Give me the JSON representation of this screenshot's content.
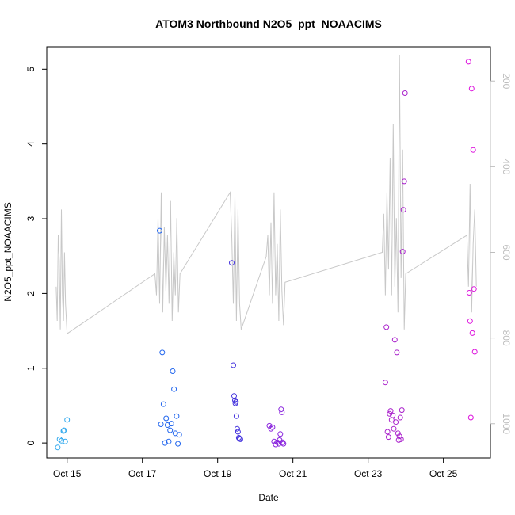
{
  "chart_data": {
    "type": "scatter",
    "title": "ATOM3 Northbound N2O5_ppt_NOAACIMS",
    "xlabel": "Date",
    "ylabel": "N2O5_ppt_NOAACIMS",
    "xlim": [
      "2017-10-14T11:00",
      "2017-10-26T06:00"
    ],
    "ylim": [
      -0.2,
      5.3
    ],
    "x_ticks": [
      {
        "date": "2017-10-15",
        "label": "Oct 15"
      },
      {
        "date": "2017-10-17",
        "label": "Oct 17"
      },
      {
        "date": "2017-10-19",
        "label": "Oct 19"
      },
      {
        "date": "2017-10-21",
        "label": "Oct 21"
      },
      {
        "date": "2017-10-23",
        "label": "Oct 23"
      },
      {
        "date": "2017-10-25",
        "label": "Oct 25"
      }
    ],
    "y_ticks": [
      0,
      1,
      2,
      3,
      4,
      5
    ],
    "right_axis": {
      "scale": "reversed",
      "range": [
        1080,
        120
      ],
      "ticks": [
        200,
        400,
        600,
        800,
        1000
      ],
      "color": "#bdbdbd"
    },
    "grid": false,
    "legend": "none",
    "marker": "open-circle",
    "line_color": "#c8c8c8",
    "flight_colors": [
      "#33aaee",
      "#2266ee",
      "#4433dd",
      "#8822dd",
      "#aa22cc",
      "#dd11dd"
    ],
    "series": [
      {
        "color": "#33aaee",
        "x": [
          "2017-10-14T18:00",
          "2017-10-14T19:12",
          "2017-10-14T20:24",
          "2017-10-14T21:36",
          "2017-10-14T22:00",
          "2017-10-14T22:48",
          "2017-10-15T00:00"
        ],
        "y": [
          -0.06,
          0.05,
          0.03,
          0.16,
          0.17,
          0.02,
          0.31
        ]
      },
      {
        "color": "#2266ee",
        "x": [
          "2017-10-17T11:00",
          "2017-10-17T11:50",
          "2017-10-17T12:40",
          "2017-10-17T13:30",
          "2017-10-17T14:20",
          "2017-10-17T15:10",
          "2017-10-17T16:00",
          "2017-10-17T16:50",
          "2017-10-17T17:40",
          "2017-10-17T18:30",
          "2017-10-17T19:20",
          "2017-10-17T20:10",
          "2017-10-17T21:00",
          "2017-10-17T21:50",
          "2017-10-17T22:40",
          "2017-10-17T23:30"
        ],
        "y": [
          2.84,
          0.25,
          1.21,
          0.52,
          0.0,
          0.33,
          0.24,
          0.02,
          0.17,
          0.26,
          0.96,
          0.72,
          0.13,
          0.36,
          -0.01,
          0.11
        ]
      },
      {
        "color": "#4433dd",
        "x": [
          "2017-10-19T09:00",
          "2017-10-19T10:00",
          "2017-10-19T10:30",
          "2017-10-19T11:00",
          "2017-10-19T11:20",
          "2017-10-19T11:40",
          "2017-10-19T12:00",
          "2017-10-19T12:30",
          "2017-10-19T13:00",
          "2017-10-19T13:30",
          "2017-10-19T14:00",
          "2017-10-19T14:30"
        ],
        "y": [
          2.41,
          1.04,
          0.63,
          0.57,
          0.53,
          0.55,
          0.36,
          0.19,
          0.15,
          0.07,
          0.06,
          0.05
        ]
      },
      {
        "color": "#8822dd",
        "x": [
          "2017-10-20T09:00",
          "2017-10-20T10:00",
          "2017-10-20T11:00",
          "2017-10-20T12:00",
          "2017-10-20T13:00",
          "2017-10-20T14:00",
          "2017-10-20T15:00",
          "2017-10-20T15:30",
          "2017-10-20T16:00",
          "2017-10-20T16:30",
          "2017-10-20T17:00",
          "2017-10-20T17:30",
          "2017-10-20T18:00"
        ],
        "y": [
          0.23,
          0.19,
          0.21,
          0.02,
          -0.02,
          0.01,
          -0.01,
          0.04,
          0.12,
          0.45,
          0.41,
          0.01,
          -0.01
        ]
      },
      {
        "color": "#aa22cc",
        "x": [
          "2017-10-23T11:00",
          "2017-10-23T11:40",
          "2017-10-23T12:20",
          "2017-10-23T13:00",
          "2017-10-23T13:40",
          "2017-10-23T14:20",
          "2017-10-23T15:00",
          "2017-10-23T15:40",
          "2017-10-23T16:20",
          "2017-10-23T17:00",
          "2017-10-23T17:40",
          "2017-10-23T18:20",
          "2017-10-23T19:00",
          "2017-10-23T19:30",
          "2017-10-23T20:00",
          "2017-10-23T20:30",
          "2017-10-23T21:00",
          "2017-10-23T21:30",
          "2017-10-23T22:00",
          "2017-10-23T22:30",
          "2017-10-23T23:00",
          "2017-10-23T23:30"
        ],
        "y": [
          0.81,
          1.55,
          0.15,
          0.08,
          0.39,
          0.43,
          0.31,
          0.37,
          0.19,
          1.38,
          0.28,
          1.21,
          0.13,
          0.04,
          0.09,
          0.34,
          0.05,
          0.44,
          2.56,
          3.12,
          3.5,
          4.68
        ]
      },
      {
        "color": "#dd11dd",
        "x": [
          "2017-10-25T16:00",
          "2017-10-25T16:30",
          "2017-10-25T17:00",
          "2017-10-25T17:30",
          "2017-10-25T18:00",
          "2017-10-25T18:30",
          "2017-10-25T19:00",
          "2017-10-25T19:30",
          "2017-10-25T20:00"
        ],
        "y": [
          5.1,
          2.01,
          1.63,
          0.34,
          4.74,
          1.47,
          3.92,
          2.06,
          1.22
        ]
      }
    ],
    "line": {
      "axis": "right",
      "x": [
        "2017-10-14T17:00",
        "2017-10-14T17:40",
        "2017-10-14T18:20",
        "2017-10-14T19:00",
        "2017-10-14T19:40",
        "2017-10-14T20:20",
        "2017-10-14T21:00",
        "2017-10-14T21:40",
        "2017-10-14T22:20",
        "2017-10-14T23:00",
        "2017-10-15T00:00",
        "2017-10-17T08:00",
        "2017-10-17T09:00",
        "2017-10-17T10:00",
        "2017-10-17T11:00",
        "2017-10-17T12:00",
        "2017-10-17T13:00",
        "2017-10-17T14:00",
        "2017-10-17T15:00",
        "2017-10-17T16:00",
        "2017-10-17T17:00",
        "2017-10-17T18:00",
        "2017-10-17T19:00",
        "2017-10-17T20:00",
        "2017-10-17T21:00",
        "2017-10-17T22:00",
        "2017-10-17T23:00",
        "2017-10-18T00:00",
        "2017-10-19T08:00",
        "2017-10-19T09:00",
        "2017-10-19T10:00",
        "2017-10-19T11:00",
        "2017-10-19T12:00",
        "2017-10-19T13:00",
        "2017-10-19T14:00",
        "2017-10-19T15:00",
        "2017-10-20T07:00",
        "2017-10-20T08:00",
        "2017-10-20T09:00",
        "2017-10-20T10:00",
        "2017-10-20T11:00",
        "2017-10-20T12:00",
        "2017-10-20T13:00",
        "2017-10-20T14:00",
        "2017-10-20T15:00",
        "2017-10-20T16:00",
        "2017-10-20T17:00",
        "2017-10-20T18:00",
        "2017-10-20T19:00",
        "2017-10-23T09:00",
        "2017-10-23T10:00",
        "2017-10-23T11:00",
        "2017-10-23T12:00",
        "2017-10-23T13:00",
        "2017-10-23T14:00",
        "2017-10-23T15:00",
        "2017-10-23T16:00",
        "2017-10-23T17:00",
        "2017-10-23T18:00",
        "2017-10-23T19:00",
        "2017-10-23T20:00",
        "2017-10-23T21:00",
        "2017-10-23T22:00",
        "2017-10-23T23:00",
        "2017-10-24T00:00",
        "2017-10-25T15:00",
        "2017-10-25T16:00",
        "2017-10-25T17:00",
        "2017-10-25T18:00",
        "2017-10-25T19:00",
        "2017-10-25T20:00",
        "2017-10-25T21:00"
      ],
      "y": [
        680,
        760,
        560,
        620,
        780,
        500,
        700,
        760,
        600,
        720,
        790,
        650,
        700,
        520,
        720,
        460,
        740,
        540,
        690,
        560,
        720,
        480,
        760,
        600,
        700,
        520,
        740,
        650,
        460,
        560,
        720,
        470,
        760,
        500,
        720,
        780,
        610,
        560,
        700,
        530,
        720,
        460,
        700,
        580,
        760,
        500,
        690,
        770,
        670,
        600,
        510,
        700,
        460,
        640,
        380,
        700,
        300,
        680,
        520,
        740,
        140,
        660,
        360,
        780,
        650,
        560,
        680,
        440,
        740,
        580,
        500,
        680
      ]
    }
  }
}
